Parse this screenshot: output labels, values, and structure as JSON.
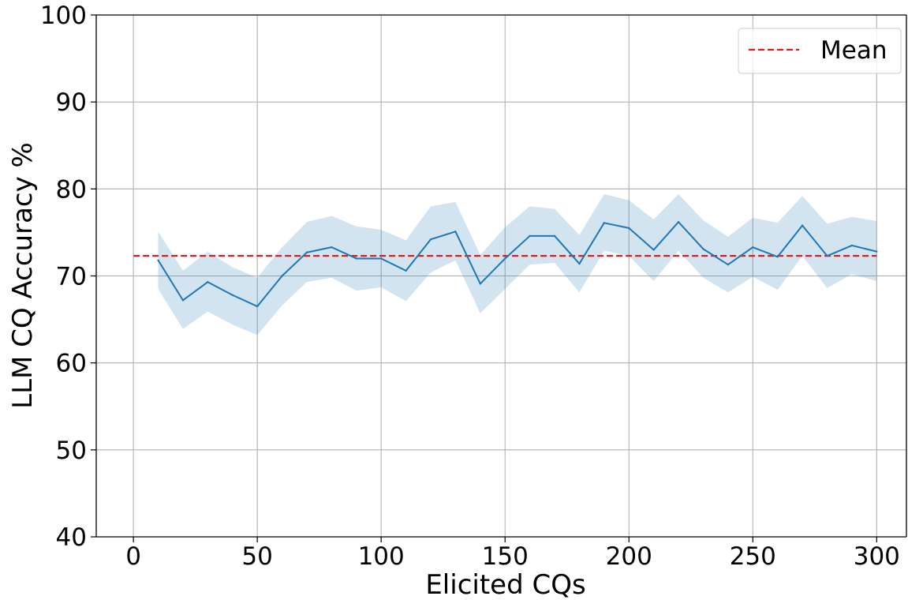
{
  "chart_data": {
    "type": "line",
    "title": "",
    "xlabel": "Elicited CQs",
    "ylabel": "LLM CQ Accuracy %",
    "xlim": [
      -15,
      312
    ],
    "ylim": [
      40,
      100
    ],
    "xticks": [
      0,
      50,
      100,
      150,
      200,
      250,
      300
    ],
    "yticks": [
      40,
      50,
      60,
      70,
      80,
      90,
      100
    ],
    "grid": true,
    "legend_position": "top-right",
    "colors": {
      "line": "#1f77b4",
      "band": "#1f77b4",
      "mean": "#e31a1c",
      "grid": "#b0b0b0"
    },
    "series": [
      {
        "values_label": "accuracy",
        "x": [
          10,
          20,
          30,
          40,
          50,
          60,
          70,
          80,
          90,
          100,
          110,
          120,
          130,
          140,
          150,
          160,
          170,
          180,
          190,
          200,
          210,
          220,
          230,
          240,
          250,
          260,
          270,
          280,
          290,
          300
        ],
        "y": [
          71.8,
          67.2,
          69.3,
          67.8,
          66.5,
          70.0,
          72.7,
          73.3,
          72.0,
          72.0,
          70.6,
          74.2,
          75.1,
          69.1,
          72.0,
          74.6,
          74.6,
          71.4,
          76.1,
          75.5,
          73.0,
          76.2,
          73.1,
          71.3,
          73.3,
          72.2,
          75.8,
          72.3,
          73.5,
          72.8
        ],
        "lower": [
          68.5,
          63.9,
          65.9,
          64.4,
          63.2,
          66.6,
          69.3,
          69.8,
          68.3,
          68.7,
          67.1,
          70.4,
          71.8,
          65.7,
          68.5,
          71.3,
          71.5,
          68.1,
          72.9,
          72.3,
          69.4,
          72.9,
          69.8,
          68.1,
          69.9,
          68.4,
          72.3,
          68.6,
          70.2,
          69.4
        ],
        "upper": [
          75.1,
          70.6,
          72.8,
          71.0,
          69.8,
          73.3,
          76.2,
          76.9,
          75.7,
          75.3,
          74.1,
          78.0,
          78.5,
          72.4,
          75.6,
          78.0,
          77.7,
          74.7,
          79.4,
          78.7,
          76.5,
          79.4,
          76.4,
          74.5,
          76.7,
          76.1,
          79.2,
          76.0,
          76.8,
          76.3
        ]
      },
      {
        "name": "Mean",
        "style": "dashed",
        "x": [
          0,
          300
        ],
        "y": [
          72.3,
          72.3
        ]
      }
    ]
  }
}
